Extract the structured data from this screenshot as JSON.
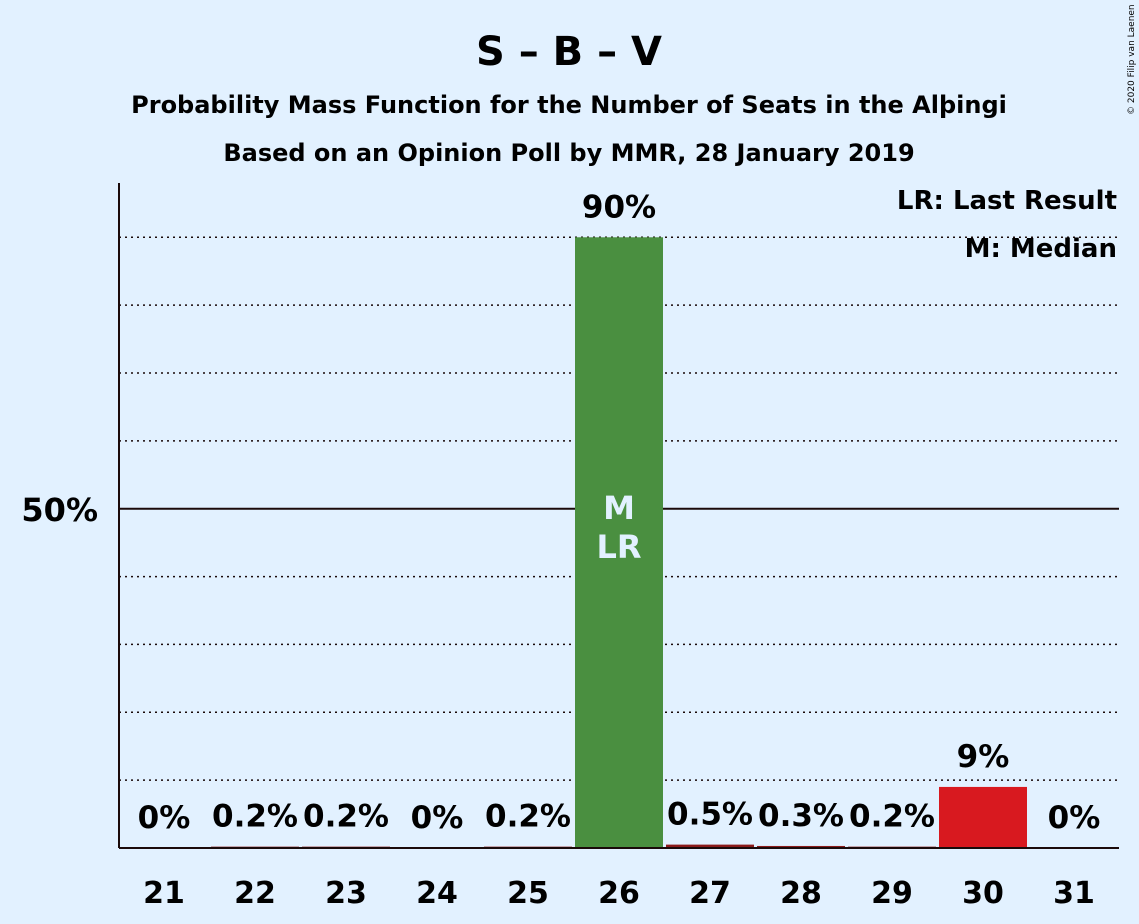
{
  "chart_data": {
    "type": "bar",
    "title": "S – B – V",
    "subtitle": "Probability Mass Function for the Number of Seats in the Alþingi",
    "subtitle2": "Based on an Opinion Poll by MMR, 28 January 2019",
    "credit": "© 2020 Filip van Laenen",
    "categories": [
      "21",
      "22",
      "23",
      "24",
      "25",
      "26",
      "27",
      "28",
      "29",
      "30",
      "31"
    ],
    "values": [
      0,
      0.2,
      0.2,
      0,
      0.2,
      90,
      0.5,
      0.3,
      0.2,
      9,
      0
    ],
    "value_labels": [
      "0%",
      "0.2%",
      "0.2%",
      "0%",
      "0.2%",
      "90%",
      "0.5%",
      "0.3%",
      "0.2%",
      "9%",
      "0%"
    ],
    "ylim": [
      0,
      98
    ],
    "ytick_label": "50%",
    "ytick_value": 50,
    "grid_values": [
      10,
      20,
      30,
      40,
      60,
      70,
      80,
      90
    ],
    "median_seat": "26",
    "last_result_seat": "26",
    "median_marker": "M",
    "last_result_marker": "LR",
    "legend": [
      "LR: Last Result",
      "M: Median"
    ],
    "colors": {
      "background": "#e2f1ff",
      "bar_default": "#4a8f40",
      "bar_highlight": "#d8191f",
      "bar_small": "#8b1a1a",
      "text": "#1a0a0a"
    }
  }
}
